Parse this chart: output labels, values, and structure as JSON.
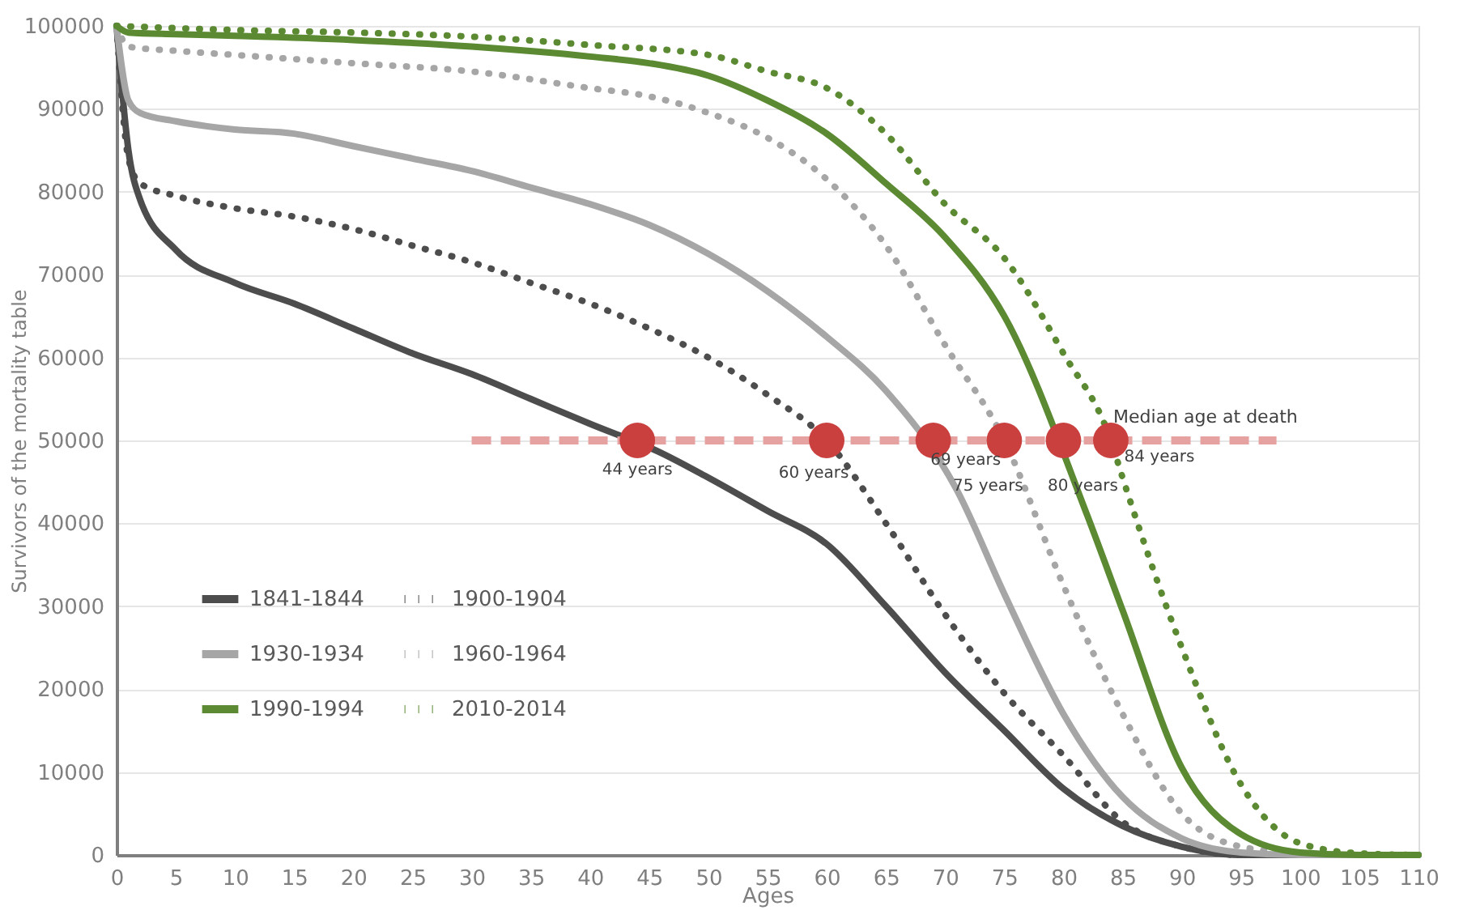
{
  "chart_data": {
    "type": "line",
    "xlabel": "Ages",
    "ylabel": "Survivors of the mortality table",
    "xlim": [
      0,
      110
    ],
    "xticks": [
      0,
      5,
      10,
      15,
      20,
      25,
      30,
      35,
      40,
      45,
      50,
      55,
      60,
      65,
      70,
      75,
      80,
      85,
      90,
      95,
      100,
      105,
      110
    ],
    "ylim": [
      0,
      100000
    ],
    "yticks": [
      0,
      10000,
      20000,
      30000,
      40000,
      50000,
      60000,
      70000,
      80000,
      90000,
      100000
    ],
    "grid": "y",
    "legend": "bottom left",
    "marker": "none",
    "series": [
      {
        "name": "1841-1844",
        "color": "#4d4d4d",
        "line_style": "solid",
        "x": [
          0,
          1,
          2,
          5,
          10,
          15,
          20,
          25,
          30,
          35,
          40,
          46,
          50,
          55,
          60,
          65,
          70,
          75,
          80,
          85,
          90,
          95,
          100,
          110
        ],
        "values": [
          100000,
          85000,
          79000,
          73000,
          69000,
          66500,
          63500,
          60500,
          58000,
          55000,
          52000,
          48500,
          45500,
          41500,
          37500,
          30000,
          22000,
          15000,
          8000,
          3500,
          1000,
          0,
          0,
          0
        ]
      },
      {
        "name": "1900-1904",
        "color": "#4d4d4d",
        "line_style": "dotted",
        "x": [
          0,
          1,
          2,
          5,
          10,
          15,
          20,
          25,
          30,
          35,
          40,
          45,
          50,
          55,
          60,
          65,
          70,
          75,
          80,
          85,
          90,
          95,
          100,
          110
        ],
        "values": [
          100000,
          84000,
          81000,
          79500,
          78000,
          77000,
          75500,
          73500,
          71500,
          69000,
          66500,
          63500,
          60000,
          55500,
          50000,
          40000,
          29000,
          19500,
          12000,
          4000,
          1000,
          0,
          0,
          0
        ]
      },
      {
        "name": "1930-1934",
        "color": "#a6a6a6",
        "line_style": "solid",
        "x": [
          0,
          1,
          2,
          5,
          10,
          15,
          20,
          25,
          30,
          35,
          40,
          45,
          50,
          55,
          60,
          65,
          71,
          75,
          80,
          85,
          90,
          95,
          100,
          110
        ],
        "values": [
          100000,
          91000,
          89500,
          88500,
          87500,
          87000,
          85500,
          84000,
          82500,
          80500,
          78500,
          76000,
          72500,
          68000,
          62500,
          56000,
          44000,
          31500,
          17000,
          7000,
          2000,
          300,
          0,
          0
        ]
      },
      {
        "name": "1960-1964",
        "color": "#a6a6a6",
        "line_style": "dotted",
        "x": [
          0,
          1,
          5,
          10,
          20,
          30,
          40,
          45,
          50,
          55,
          60,
          65,
          70,
          75,
          80,
          85,
          90,
          95,
          100,
          105,
          110
        ],
        "values": [
          100000,
          97500,
          97000,
          96500,
          95500,
          94500,
          92500,
          91500,
          89500,
          86500,
          81500,
          73500,
          61500,
          50000,
          32500,
          17000,
          5000,
          1000,
          200,
          0,
          0
        ]
      },
      {
        "name": "1990-1994",
        "color": "#5b8a32",
        "line_style": "solid",
        "x": [
          0,
          1,
          5,
          10,
          20,
          30,
          40,
          45,
          50,
          55,
          60,
          65,
          70,
          75,
          82,
          85,
          90,
          95,
          100,
          105,
          110
        ],
        "values": [
          100000,
          99200,
          99000,
          98800,
          98300,
          97500,
          96300,
          95500,
          94000,
          91000,
          87000,
          81000,
          74500,
          65000,
          41000,
          29500,
          10500,
          2500,
          300,
          0,
          0
        ]
      },
      {
        "name": "2010-2014",
        "color": "#5b8a32",
        "line_style": "dotted",
        "x": [
          0,
          10,
          20,
          30,
          40,
          50,
          55,
          60,
          65,
          70,
          75,
          80,
          84,
          85,
          90,
          95,
          100,
          105,
          110
        ],
        "values": [
          100000,
          99500,
          99200,
          98700,
          97700,
          96500,
          94500,
          92500,
          87000,
          78500,
          72000,
          60500,
          50000,
          45500,
          25000,
          8500,
          1400,
          200,
          0
        ]
      },
      {
        "type": "line",
        "color": "#e6a1a1",
        "line_style": "dashed",
        "x": [
          30,
          98
        ],
        "values": [
          50000,
          50000
        ]
      },
      {
        "type": "scatter",
        "color": "#c9403f",
        "marker": "circle",
        "x": [
          44,
          60,
          69,
          75,
          80,
          84
        ],
        "values": [
          50000,
          50000,
          50000,
          50000,
          50000,
          50000
        ]
      }
    ],
    "annotations": [
      {
        "text": "44 years",
        "x": 44,
        "y": 50000
      },
      {
        "text": "60 years",
        "x": 60,
        "y": 50000
      },
      {
        "text": "69 years",
        "x": 69,
        "y": 50000
      },
      {
        "text": "75 years",
        "x": 75,
        "y": 50000
      },
      {
        "text": "80 years",
        "x": 80,
        "y": 50000
      },
      {
        "text": "84 years",
        "x": 84,
        "y": 50000
      },
      {
        "text": "Median age at death",
        "x": 92,
        "y": 50000
      }
    ]
  }
}
